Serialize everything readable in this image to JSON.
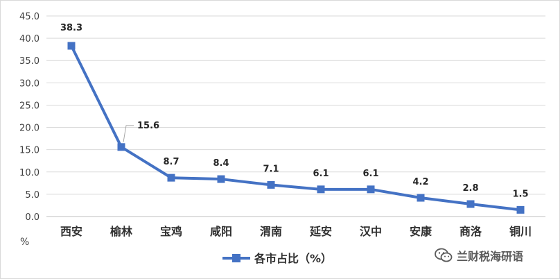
{
  "chart_data": {
    "type": "line",
    "title": "",
    "categories": [
      "西安",
      "榆林",
      "宝鸡",
      "咸阳",
      "渭南",
      "延安",
      "汉中",
      "安康",
      "商洛",
      "铜川"
    ],
    "series": [
      {
        "name": "各市占比（%）",
        "values": [
          38.3,
          15.6,
          8.7,
          8.4,
          7.1,
          6.1,
          6.1,
          4.2,
          2.8,
          1.5
        ],
        "labels": [
          "38.3",
          "15.6",
          "8.7",
          "8.4",
          "7.1",
          "6.1",
          "6.1",
          "4.2",
          "2.8",
          "1.5"
        ]
      }
    ],
    "ylim": [
      0,
      45
    ],
    "yticks": [
      "0.0",
      "5.0",
      "10.0",
      "15.0",
      "20.0",
      "25.0",
      "30.0",
      "35.0",
      "40.0",
      "45.0"
    ],
    "y_unit": "%",
    "grid": true,
    "legend_position": "bottom",
    "colors": {
      "line": "#4472c4",
      "grid": "#d9d9d9",
      "axis": "#bfbfbf"
    }
  },
  "watermark": {
    "text": "兰财税海研语",
    "icon": "wechat-icon"
  }
}
